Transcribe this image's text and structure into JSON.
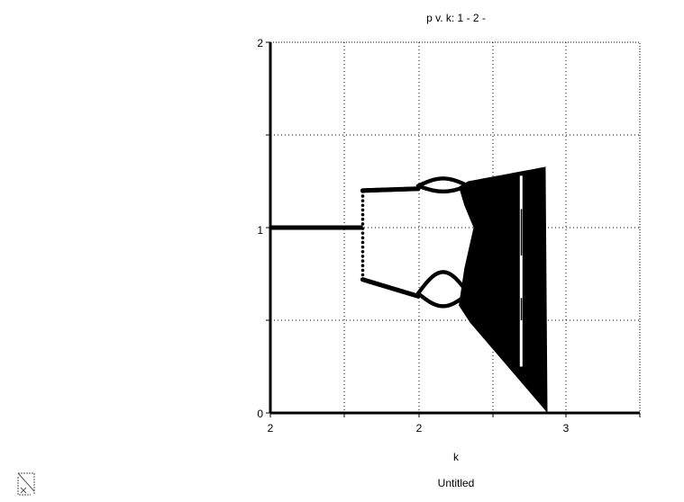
{
  "chart_data": {
    "type": "scatter",
    "title": "p v. k: 1 - 2 -",
    "xlabel": "k",
    "ylabel": "",
    "caption": "Untitled",
    "x_tick_labels": [
      "2",
      "2",
      "3"
    ],
    "y_tick_labels": [
      "0",
      "1",
      "2"
    ],
    "xlim": [
      1.5,
      3.5
    ],
    "ylim": [
      0,
      2
    ],
    "grid": true,
    "grid_style": "dotted",
    "series": [
      {
        "description_of_values": "attractor of p for each k",
        "fixed_point": {
          "k_range": [
            1.5,
            2.0
          ],
          "p": 1.0
        },
        "period_2_onset": {
          "k": 2.0,
          "p_upper": 1.2,
          "p_lower": 0.72
        },
        "period_4_onset": {
          "k": 2.45,
          "p_upper": [
            1.2,
            1.25
          ],
          "p_lower": [
            0.52,
            0.75
          ]
        },
        "chaos_onset_k": 2.57,
        "chaos_envelope_at_end": {
          "k": 3.0,
          "p_max": 1.33,
          "p_min": 0.0
        }
      }
    ],
    "colors": {
      "marks": "#000000",
      "background": "#ffffff",
      "grid": "#000000"
    }
  },
  "icons": {
    "resize_handle": "resize-corner-icon"
  }
}
